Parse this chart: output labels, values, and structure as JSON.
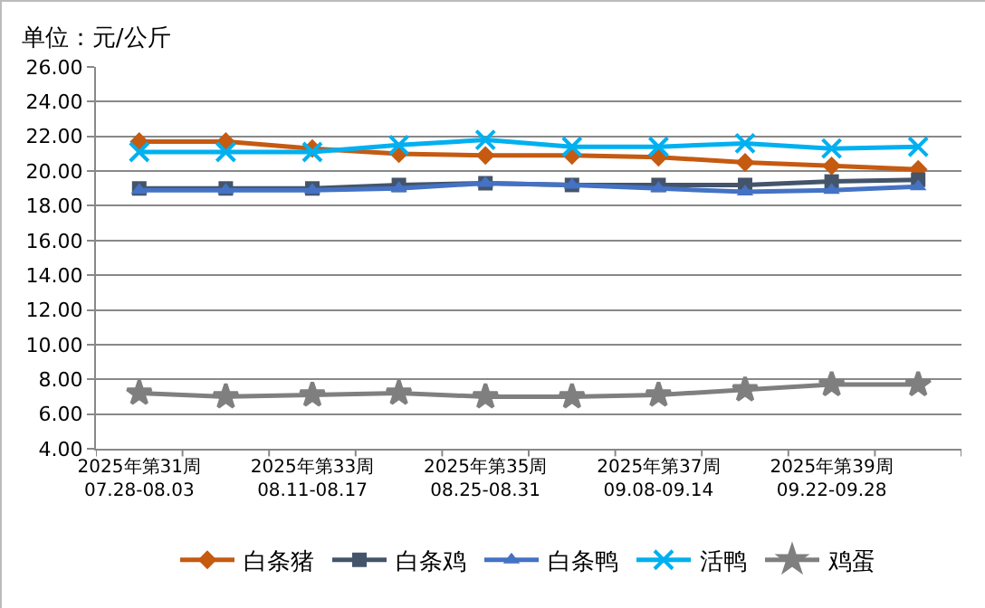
{
  "chart_data": {
    "type": "line",
    "title": "单位：元/公斤",
    "categories": [
      "2025年第31周\n07.28-08.03",
      null,
      "2025年第33周\n08.11-08.17",
      null,
      "2025年第35周\n08.25-08.31",
      null,
      "2025年第37周\n09.08-09.14",
      null,
      "2025年第39周\n09.22-09.28",
      null
    ],
    "series": [
      {
        "name": "白条猪",
        "color": "#c55a11",
        "marker": "diamond",
        "values": [
          21.7,
          21.7,
          21.3,
          21.0,
          20.9,
          20.9,
          20.8,
          20.5,
          20.3,
          20.1
        ]
      },
      {
        "name": "白条鸡",
        "color": "#44546a",
        "marker": "square",
        "values": [
          19.0,
          19.0,
          19.0,
          19.2,
          19.3,
          19.2,
          19.2,
          19.2,
          19.4,
          19.5
        ]
      },
      {
        "name": "白条鸭",
        "color": "#4472c4",
        "marker": "triangle",
        "values": [
          18.9,
          18.9,
          18.9,
          19.0,
          19.3,
          19.2,
          19.0,
          18.8,
          18.9,
          19.1
        ]
      },
      {
        "name": "活鸭",
        "color": "#00b0f0",
        "marker": "cross",
        "values": [
          21.1,
          21.1,
          21.1,
          21.5,
          21.8,
          21.4,
          21.4,
          21.6,
          21.3,
          21.4
        ]
      },
      {
        "name": "鸡蛋",
        "color": "#7f7f7f",
        "marker": "star",
        "values": [
          7.2,
          7.0,
          7.1,
          7.2,
          7.0,
          7.0,
          7.1,
          7.4,
          7.7,
          7.7
        ]
      }
    ],
    "ylim": [
      4,
      26
    ],
    "yticks": [
      {
        "value": 4,
        "label": "4.00"
      },
      {
        "value": 6,
        "label": "6.00"
      },
      {
        "value": 8,
        "label": "8.00"
      },
      {
        "value": 10,
        "label": "10.00"
      },
      {
        "value": 12,
        "label": "12.00"
      },
      {
        "value": 14,
        "label": "14.00"
      },
      {
        "value": 16,
        "label": "16.00"
      },
      {
        "value": 18,
        "label": "18.00"
      },
      {
        "value": 20,
        "label": "20.00"
      },
      {
        "value": 22,
        "label": "22.00"
      },
      {
        "value": 24,
        "label": "24.00"
      },
      {
        "value": 26,
        "label": "26.00"
      }
    ],
    "grid": "y",
    "legend": "bottom"
  }
}
